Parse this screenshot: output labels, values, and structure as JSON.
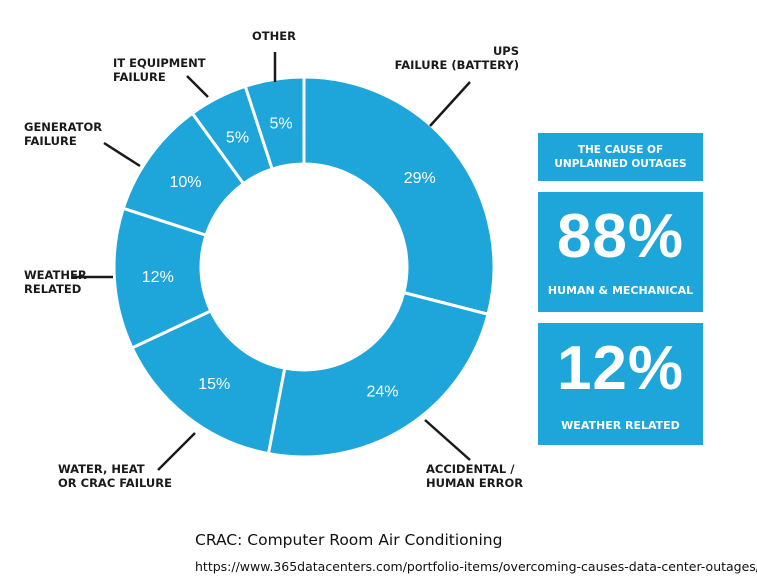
{
  "chart_data": {
    "type": "pie",
    "style": "donut",
    "slices": [
      {
        "label_lines": [
          "UPS",
          "FAILURE (BATTERY)"
        ],
        "value": 29,
        "value_label": "29%"
      },
      {
        "label_lines": [
          "ACCIDENTAL /",
          "HUMAN ERROR"
        ],
        "value": 24,
        "value_label": "24%"
      },
      {
        "label_lines": [
          "WATER, HEAT",
          "OR CRAC FAILURE"
        ],
        "value": 15,
        "value_label": "15%"
      },
      {
        "label_lines": [
          "WEATHER",
          "RELATED"
        ],
        "value": 12,
        "value_label": "12%"
      },
      {
        "label_lines": [
          "GENERATOR",
          "FAILURE"
        ],
        "value": 10,
        "value_label": "10%"
      },
      {
        "label_lines": [
          "IT EQUIPMENT",
          "FAILURE"
        ],
        "value": 5,
        "value_label": "5%"
      },
      {
        "label_lines": [
          "OTHER"
        ],
        "value": 5,
        "value_label": "5%"
      }
    ],
    "colors": {
      "slice": "#1ea5d9",
      "separator": "#ffffff",
      "leader": "#1a1a1a"
    }
  },
  "panel": {
    "title_lines": [
      "THE CAUSE OF",
      "UNPLANNED OUTAGES"
    ],
    "stat1": {
      "value": "88%",
      "caption": "HUMAN & MECHANICAL"
    },
    "stat2": {
      "value": "12%",
      "caption": "WEATHER RELATED"
    },
    "color": "#1ea5d9"
  },
  "footnote": "CRAC: Computer Room Air Conditioning",
  "source": "https://www.365datacenters.com/portfolio-items/overcoming-causes-data-center-outages/"
}
